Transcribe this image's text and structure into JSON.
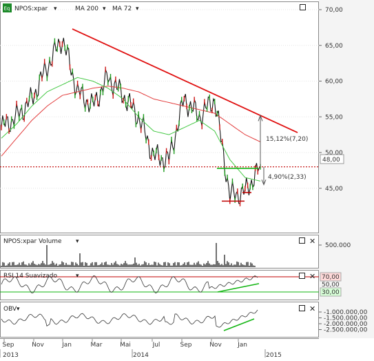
{
  "toolbar": {
    "app_icon_label": "Eq",
    "symbol_label": "NPOS:xpar",
    "ma1_label": "MA 200",
    "ma2_label": "MA 72"
  },
  "colors": {
    "price": "#111111",
    "ma200": "#e23a3a",
    "ma72": "#43c843",
    "trend": "#e01010",
    "level": "#c00000",
    "support": "#12b512",
    "axis_bg_upper": "#f3f3f3",
    "rsi_box_70": "#ffd9d9",
    "rsi_box_30": "#d8ffd8"
  },
  "panels": {
    "volume_title": "NPOS:xpar Volume",
    "rsi_title": "RSI 14 Suavizado",
    "obv_title": "OBV"
  },
  "annotations": {
    "upper_pct": "15,12%(7,20)",
    "lower_pct": "4,90%(2,33)",
    "last_price": "48,00"
  },
  "chart_data": [
    {
      "type": "line",
      "title": "NPOS:xpar",
      "series": [
        {
          "name": "NPOS:xpar",
          "x": [
            "2013-09",
            "2013-10",
            "2013-11",
            "2013-12",
            "2014-01",
            "2014-02",
            "2014-03",
            "2014-04",
            "2014-05",
            "2014-06",
            "2014-07",
            "2014-08",
            "2014-09",
            "2014-10",
            "2014-11",
            "2014-12",
            "2015-01",
            "2015-02"
          ],
          "values": [
            53.5,
            55.0,
            57.5,
            62.0,
            66.0,
            58.5,
            56.5,
            60.5,
            58.0,
            55.0,
            49.5,
            49.0,
            57.5,
            55.0,
            57.5,
            44.0,
            44.5,
            48.0
          ]
        },
        {
          "name": "MA 200",
          "values": [
            49.5,
            52.0,
            54.5,
            56.5,
            58.0,
            58.5,
            59.0,
            59.3,
            59.0,
            58.5,
            57.5,
            57.0,
            56.5,
            56.0,
            55.5,
            54.0,
            52.5,
            51.5
          ]
        },
        {
          "name": "MA 72",
          "values": [
            52.0,
            54.0,
            56.5,
            58.5,
            59.5,
            60.5,
            60.0,
            59.0,
            57.5,
            55.0,
            53.0,
            52.5,
            53.5,
            54.5,
            53.0,
            49.0,
            46.5,
            46.0
          ]
        }
      ],
      "yticks": [
        "70,00",
        "65,00",
        "60,00",
        "55,00",
        "50,00",
        "45,00"
      ],
      "ylim": [
        38,
        71
      ]
    },
    {
      "type": "bar",
      "title": "NPOS:xpar Volume",
      "yticks": [
        "500.000"
      ]
    },
    {
      "type": "line",
      "title": "RSI 14 Suavizado",
      "yticks": [
        "70,00",
        "50,00",
        "30,00"
      ],
      "ylim": [
        20,
        80
      ]
    },
    {
      "type": "line",
      "title": "OBV",
      "yticks": [
        "-1.000.000,00",
        "-1.500.000,00",
        "-2.000.000,00",
        "-2.500.000,00"
      ]
    }
  ],
  "x_axis": {
    "months": [
      "Sep",
      "Nov",
      "Jan",
      "Mar",
      "Mai",
      "Jul",
      "Sep",
      "Nov",
      "Jan"
    ],
    "years": [
      "2013",
      "2014",
      "2015"
    ]
  }
}
